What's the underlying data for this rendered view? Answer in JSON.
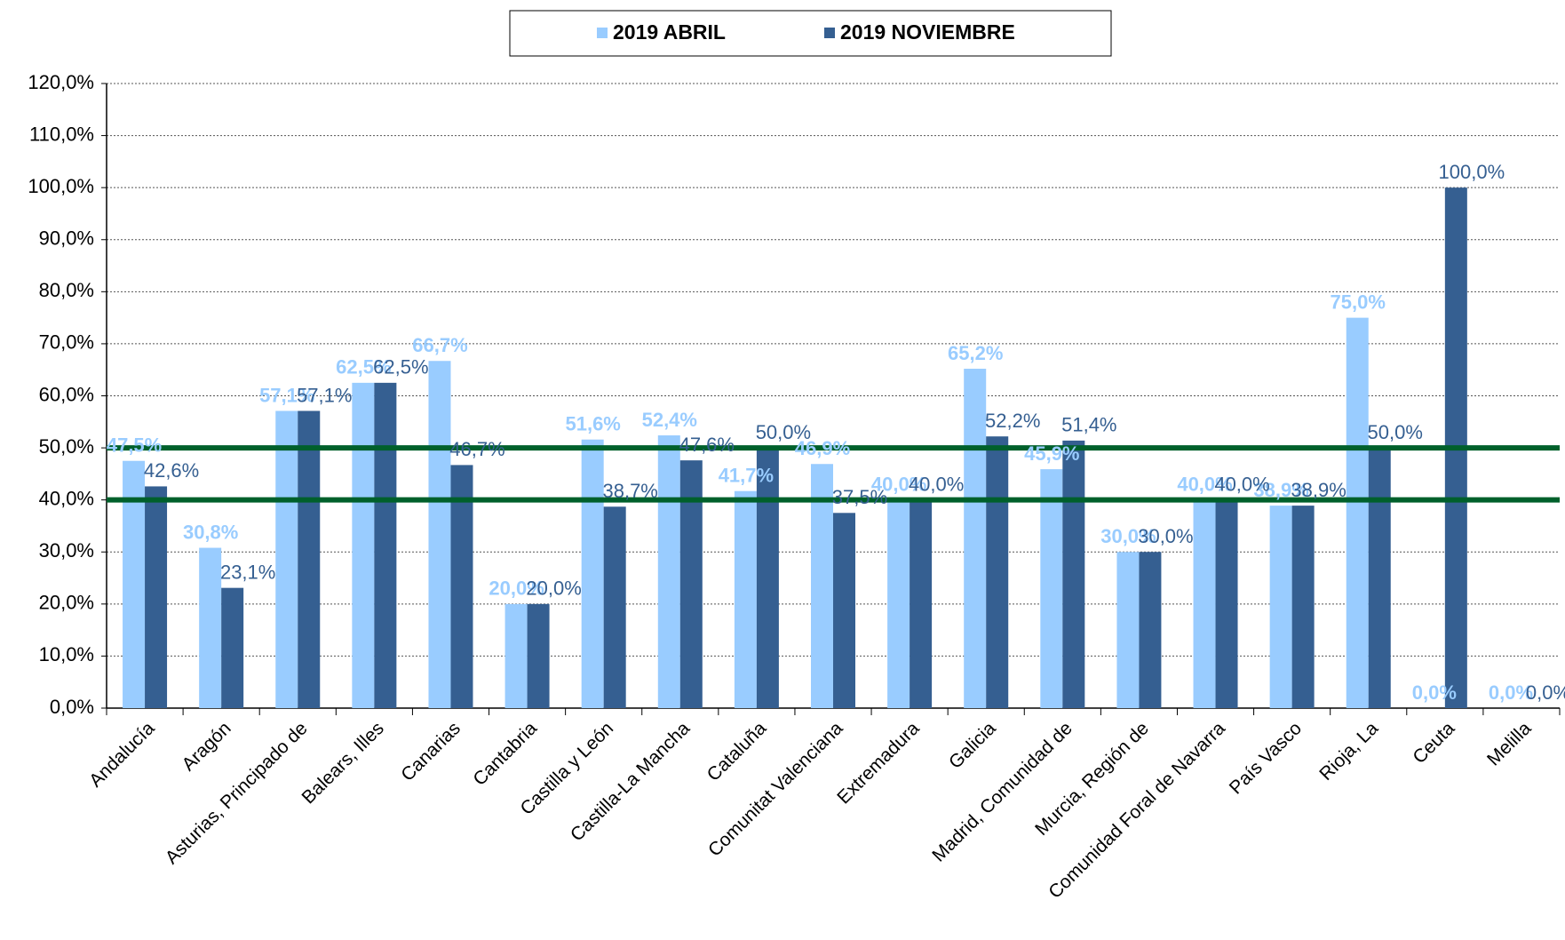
{
  "chart_data": {
    "type": "bar",
    "categories": [
      "Andalucía",
      "Aragón",
      "Asturias, Principado de",
      "Balears, Illes",
      "Canarias",
      "Cantabria",
      "Castilla y León",
      "Castilla-La Mancha",
      "Cataluña",
      "Comunitat Valenciana",
      "Extremadura",
      "Galicia",
      "Madrid, Comunidad de",
      "Murcia, Región de",
      "Comunidad Foral de Navarra",
      "País Vasco",
      "Rioja, La",
      "Ceuta",
      "Melilla"
    ],
    "series": [
      {
        "name": "2019 ABRIL",
        "color": "#99ccff",
        "values": [
          47.5,
          30.8,
          57.1,
          62.5,
          66.7,
          20.0,
          51.6,
          52.4,
          41.7,
          46.9,
          40.0,
          65.2,
          45.9,
          30.0,
          40.0,
          38.9,
          75.0,
          0.0,
          0.0
        ],
        "value_labels": [
          "47,5%",
          "30,8%",
          "57,1%",
          "62,5%",
          "66,7%",
          "20,0%",
          "51,6%",
          "52,4%",
          "41,7%",
          "46,9%",
          "40,0%",
          "65,2%",
          "45,9%",
          "30,0%",
          "40,0%",
          "38,9%",
          "75,0%",
          "0,0%",
          "0,0%"
        ]
      },
      {
        "name": "2019 NOVIEMBRE",
        "color": "#355f91",
        "values": [
          42.6,
          23.1,
          57.1,
          62.5,
          46.7,
          20.0,
          38.7,
          47.6,
          50.0,
          37.5,
          40.0,
          52.2,
          51.4,
          30.0,
          40.0,
          38.9,
          50.0,
          100.0,
          0.0
        ],
        "value_labels": [
          "42,6%",
          "23,1%",
          "57,1%",
          "62,5%",
          "46,7%",
          "20,0%",
          "38,7%",
          "47,6%",
          "50,0%",
          "37,5%",
          "40,0%",
          "52,2%",
          "51,4%",
          "30,0%",
          "40,0%",
          "38,9%",
          "50,0%",
          "100,0%",
          "0,0%"
        ]
      }
    ],
    "ylim": [
      0,
      120
    ],
    "yticks": [
      {
        "value": 0,
        "label": "0,0%"
      },
      {
        "value": 10,
        "label": "10,0%"
      },
      {
        "value": 20,
        "label": "20,0%"
      },
      {
        "value": 30,
        "label": "30,0%"
      },
      {
        "value": 40,
        "label": "40,0%"
      },
      {
        "value": 50,
        "label": "50,0%"
      },
      {
        "value": 60,
        "label": "60,0%"
      },
      {
        "value": 70,
        "label": "70,0%"
      },
      {
        "value": 80,
        "label": "80,0%"
      },
      {
        "value": 90,
        "label": "90,0%"
      },
      {
        "value": 100,
        "label": "100,0%"
      },
      {
        "value": 110,
        "label": "110,0%"
      },
      {
        "value": 120,
        "label": "120,0%"
      }
    ],
    "reference_lines": [
      {
        "value": 50,
        "color": "#00602b"
      },
      {
        "value": 40,
        "color": "#00602b"
      }
    ],
    "grid": true,
    "legend": "top"
  }
}
